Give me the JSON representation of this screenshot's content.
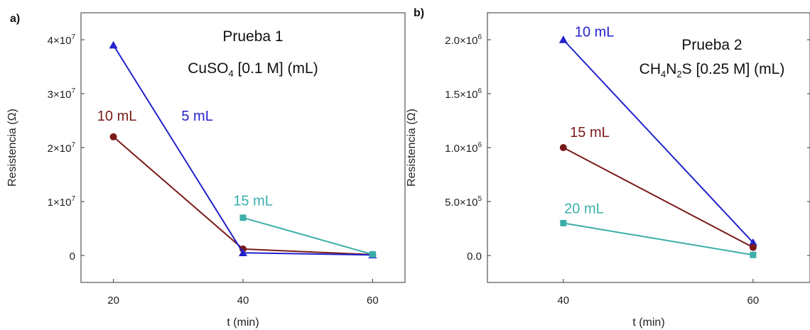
{
  "chart_data": [
    {
      "type": "line",
      "panel_label": "a)",
      "annotation_line1": "Prueba 1",
      "annotation_line2": {
        "pre": "CuSO",
        "sub": "4",
        "post": " [0.1 M] (mL)"
      },
      "xlabel": "t (min)",
      "ylabel": "Resistencia (Ω)",
      "xlim": [
        15,
        65
      ],
      "ylim": [
        -5000000,
        45000000
      ],
      "xticks": [
        {
          "value": 20,
          "label": "20"
        },
        {
          "value": 40,
          "label": "40"
        },
        {
          "value": 60,
          "label": "60"
        }
      ],
      "yticks": [
        {
          "value": 0,
          "label": "0",
          "exp": ""
        },
        {
          "value": 10000000,
          "label": "1×10",
          "exp": "7"
        },
        {
          "value": 20000000,
          "label": "2×10",
          "exp": "7"
        },
        {
          "value": 30000000,
          "label": "3×10",
          "exp": "7"
        },
        {
          "value": 40000000,
          "label": "4×10",
          "exp": "7"
        }
      ],
      "series": [
        {
          "name": "10 mL",
          "color": "#7a1a1a",
          "marker": "circle",
          "x": [
            20,
            40,
            60
          ],
          "y": [
            22000000,
            1200000,
            150000
          ],
          "label_at": [
            17.5,
            25000000
          ]
        },
        {
          "name": "5 mL",
          "color": "#2222cc",
          "marker": "triangle",
          "x": [
            20,
            40,
            60
          ],
          "y": [
            39000000,
            500000,
            100000
          ],
          "label_at": [
            30.5,
            25000000
          ]
        },
        {
          "name": "15 mL",
          "color": "#3aafa9",
          "marker": "square",
          "x": [
            40,
            60
          ],
          "y": [
            7000000,
            200000
          ],
          "label_at": [
            38.5,
            9300000
          ]
        }
      ]
    },
    {
      "type": "line",
      "panel_label": "b)",
      "annotation_line1": "Prueba 2",
      "annotation_line2": {
        "pre": "CH",
        "sub1": "4",
        "mid": "N",
        "sub2": "2",
        "post": "S [0.25 M] (mL)"
      },
      "xlabel": "t (min)",
      "ylabel": "Resistencia (Ω)",
      "xlim": [
        32,
        66
      ],
      "ylim": [
        -250000,
        2250000
      ],
      "xticks": [
        {
          "value": 40,
          "label": "40"
        },
        {
          "value": 60,
          "label": "60"
        }
      ],
      "yticks": [
        {
          "value": 0,
          "label": "0.0",
          "exp": ""
        },
        {
          "value": 500000,
          "label": "5.0×10",
          "exp": "5"
        },
        {
          "value": 1000000,
          "label": "1.0×10",
          "exp": "6"
        },
        {
          "value": 1500000,
          "label": "1.5×10",
          "exp": "6"
        },
        {
          "value": 2000000,
          "label": "2.0×10",
          "exp": "6"
        }
      ],
      "series": [
        {
          "name": "10 mL",
          "color": "#2222cc",
          "marker": "triangle",
          "x": [
            40,
            60
          ],
          "y": [
            2000000,
            120000
          ],
          "label_at": [
            41.2,
            2030000
          ]
        },
        {
          "name": "15 mL",
          "color": "#7a1a1a",
          "marker": "circle",
          "x": [
            40,
            60
          ],
          "y": [
            1000000,
            75000
          ],
          "label_at": [
            40.7,
            1100000
          ]
        },
        {
          "name": "20 mL",
          "color": "#3aafa9",
          "marker": "square",
          "x": [
            40,
            60
          ],
          "y": [
            300000,
            5000
          ],
          "label_at": [
            40.1,
            390000
          ]
        }
      ]
    }
  ]
}
